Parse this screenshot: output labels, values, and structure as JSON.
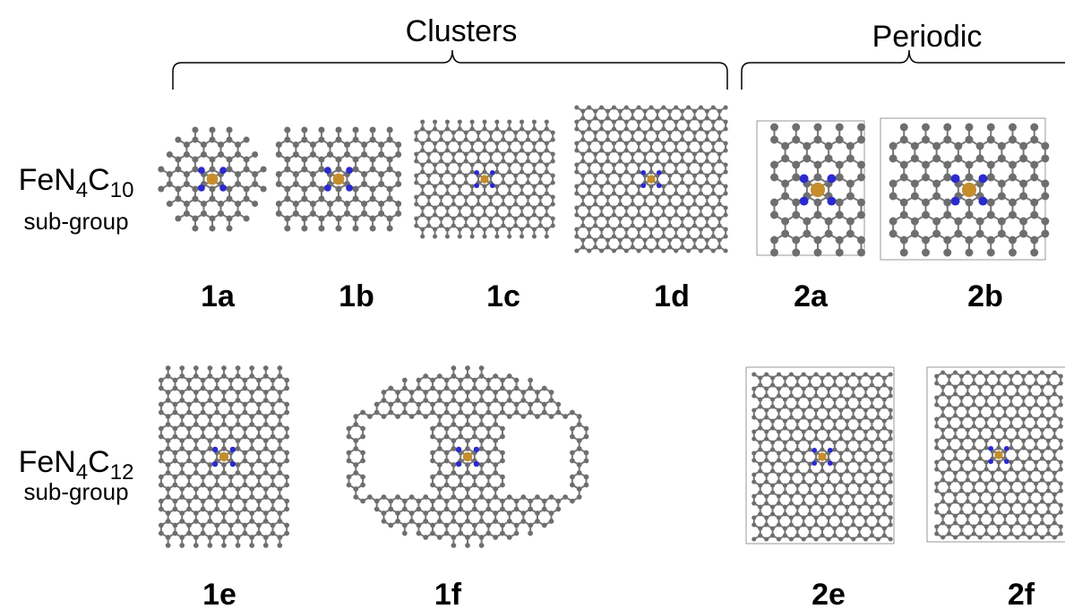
{
  "header": {
    "clusters": "Clusters",
    "periodic": "Periodic"
  },
  "rows": [
    {
      "formula": [
        "FeN",
        "4",
        "C",
        "10"
      ],
      "sublabel": "sub-group"
    },
    {
      "formula": [
        "FeN",
        "4",
        "C",
        "12"
      ],
      "sublabel": "sub-group"
    }
  ],
  "panels": [
    "1a",
    "1b",
    "1c",
    "1d",
    "2a",
    "2b",
    "1e",
    "1f",
    "2e",
    "2f"
  ]
}
